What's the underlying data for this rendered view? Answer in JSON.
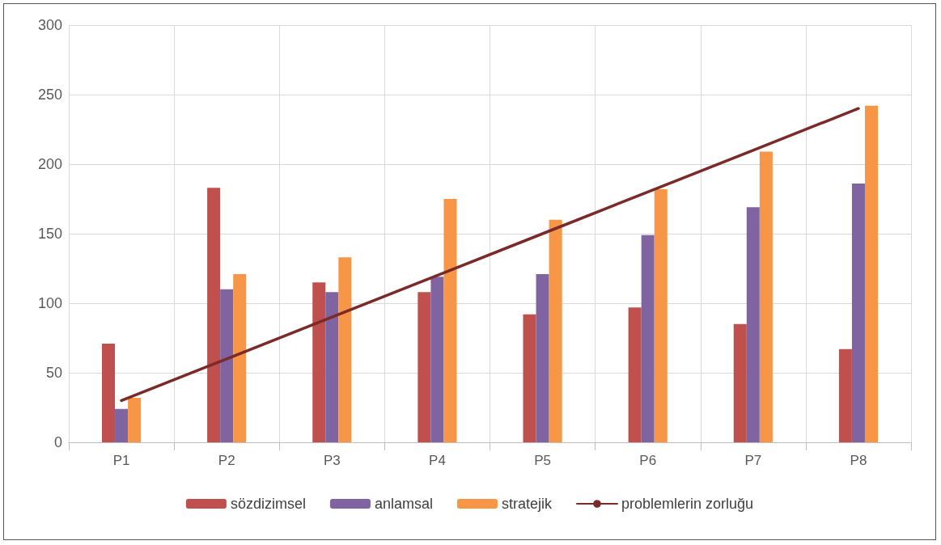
{
  "chart_data": {
    "type": "bar",
    "categories": [
      "P1",
      "P2",
      "P3",
      "P4",
      "P5",
      "P6",
      "P7",
      "P8"
    ],
    "series": [
      {
        "name": "sözdizimsel",
        "color": "#c0504d",
        "values": [
          71,
          183,
          115,
          108,
          92,
          97,
          85,
          67
        ]
      },
      {
        "name": "anlamsal",
        "color": "#8064a2",
        "values": [
          24,
          110,
          108,
          119,
          121,
          149,
          169,
          186
        ]
      },
      {
        "name": "stratejik",
        "color": "#f79646",
        "values": [
          32,
          121,
          133,
          175,
          160,
          182,
          209,
          242
        ]
      },
      {
        "name": "problemlerin zorluğu",
        "type": "line",
        "color": "#7b2a2a",
        "values": [
          30,
          60,
          90,
          120,
          150,
          180,
          210,
          240
        ],
        "marker": "none",
        "line_style": "solid"
      }
    ],
    "ylim": [
      0,
      300
    ],
    "yticks": [
      0,
      50,
      100,
      150,
      200,
      250,
      300
    ],
    "grid": true,
    "legend": "bottom"
  }
}
